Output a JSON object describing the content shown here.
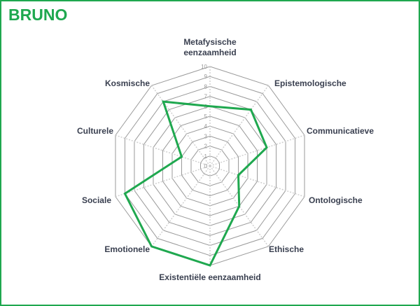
{
  "title": "BRUNO",
  "colors": {
    "accent": "#1fa84f",
    "grid": "#999999",
    "label": "#3a4050"
  },
  "chart_data": {
    "type": "radar",
    "title": "BRUNO",
    "categories": [
      "Metafysische eenzaamheid",
      "Epistemologische",
      "Communicatieve",
      "Ontologische",
      "Ethische",
      "Existentiële eenzaamheid",
      "Emotionele",
      "Sociale",
      "Culturele",
      "Kosmische"
    ],
    "values": [
      6,
      7,
      6,
      3,
      5,
      10,
      10,
      9,
      3,
      8
    ],
    "rlim": [
      0,
      10
    ],
    "ticks": [
      "0",
      "1",
      "2",
      "3",
      "4",
      "5",
      "6",
      "7",
      "8",
      "9",
      "10"
    ],
    "grid": true,
    "legend": "none"
  }
}
